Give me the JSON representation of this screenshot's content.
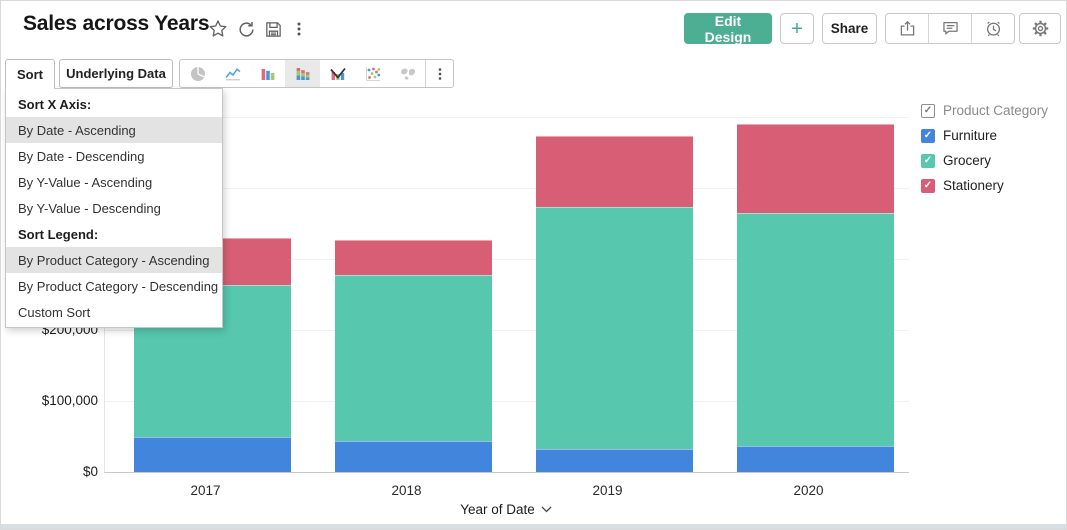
{
  "header": {
    "title": "Sales across Years",
    "buttons": {
      "edit_design": "Edit Design",
      "add": "+",
      "share": "Share"
    }
  },
  "toolbar": {
    "sort": "Sort",
    "underlying_data": "Underlying Data",
    "selected_chart_type": "stacked-bar-chart"
  },
  "sort_menu": {
    "items": [
      {
        "label": "Sort X Axis:",
        "type": "header",
        "highlighted": false
      },
      {
        "label": "By Date - Ascending",
        "type": "option",
        "highlighted": true
      },
      {
        "label": "By Date - Descending",
        "type": "option",
        "highlighted": false
      },
      {
        "label": "By Y-Value - Ascending",
        "type": "option",
        "highlighted": false
      },
      {
        "label": "By Y-Value - Descending",
        "type": "option",
        "highlighted": false
      },
      {
        "label": "Sort Legend:",
        "type": "header",
        "highlighted": false
      },
      {
        "label": "By Product Category - Ascending",
        "type": "option",
        "highlighted": true
      },
      {
        "label": "By Product Category - Descending",
        "type": "option",
        "highlighted": false
      },
      {
        "label": "Custom Sort",
        "type": "option",
        "highlighted": false
      }
    ]
  },
  "chart_data": {
    "type": "bar",
    "stacked": true,
    "title": "Sales across Years",
    "categories": [
      "2017",
      "2018",
      "2019",
      "2020"
    ],
    "series": [
      {
        "name": "Furniture",
        "color": "#4285DD",
        "values": [
          49000,
          44000,
          32000,
          37000
        ]
      },
      {
        "name": "Grocery",
        "color": "#57C7AE",
        "values": [
          215000,
          234000,
          342000,
          328000
        ]
      },
      {
        "name": "Stationery",
        "color": "#D85E76",
        "values": [
          66000,
          49000,
          100000,
          125000
        ]
      }
    ],
    "xlabel": "Year of Date",
    "yticks": [
      {
        "label": "$0",
        "value": 0
      },
      {
        "label": "$100,000",
        "value": 100000
      },
      {
        "label": "$200,000",
        "value": 200000
      }
    ],
    "ylim": [
      0,
      530000
    ],
    "gridline_step": 100000,
    "grid": true,
    "legend_title": "Product Category",
    "legend_position": "right",
    "legend_all_checked": true
  },
  "icons": {
    "header": [
      "star-icon",
      "refresh-icon",
      "save-icon",
      "kebab-menu-icon"
    ],
    "header_right": [
      "export-icon",
      "comment-icon",
      "alarm-clock-icon",
      "gear-icon"
    ],
    "chart_types": [
      "pie-chart-icon",
      "line-chart-icon",
      "bar-chart-icon",
      "stacked-bar-chart-icon",
      "combo-chart-icon",
      "scatter-chart-icon",
      "map-chart-icon",
      "kebab-menu-icon"
    ],
    "xaxis": "chevron-down-icon",
    "legend_check": "✓"
  },
  "colors": {
    "accent_teal": "#4CAF93",
    "menu_highlight": "#e3e3e3",
    "bottom_bar": "#d7dfe5"
  }
}
